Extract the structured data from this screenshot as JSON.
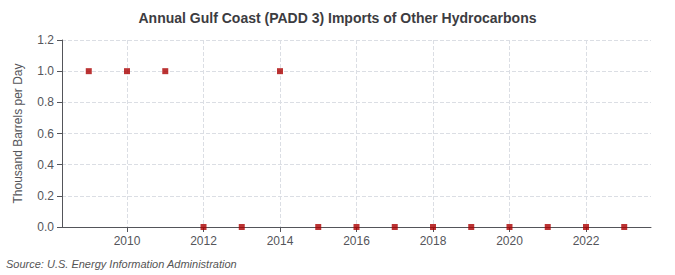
{
  "chart_data": {
    "type": "scatter",
    "title": "Annual Gulf Coast (PADD 3) Imports of Other Hydrocarbons",
    "ylabel": "Thousand Barrels per Day",
    "annotation": "Source: U.S. Energy Information Administration",
    "x": [
      2009,
      2010,
      2011,
      2012,
      2013,
      2014,
      2015,
      2016,
      2017,
      2018,
      2019,
      2020,
      2021,
      2022,
      2023
    ],
    "values": [
      1.0,
      1.0,
      1.0,
      0.0,
      0.0,
      1.0,
      0.0,
      0.0,
      0.0,
      0.0,
      0.0,
      0.0,
      0.0,
      0.0,
      0.0
    ],
    "color": "#aa0000",
    "marker": "square",
    "xlim": [
      2008.3,
      2023.7
    ],
    "xticks": [
      2010,
      2012,
      2014,
      2016,
      2018,
      2020,
      2022
    ],
    "ylim": [
      0.0,
      1.2
    ],
    "yticks": [
      {
        "value": 0,
        "label": "0.0"
      },
      0.2,
      0.4,
      0.6,
      0.8,
      {
        "value": 1,
        "label": "1.0"
      },
      1.2
    ],
    "grid": true
  }
}
